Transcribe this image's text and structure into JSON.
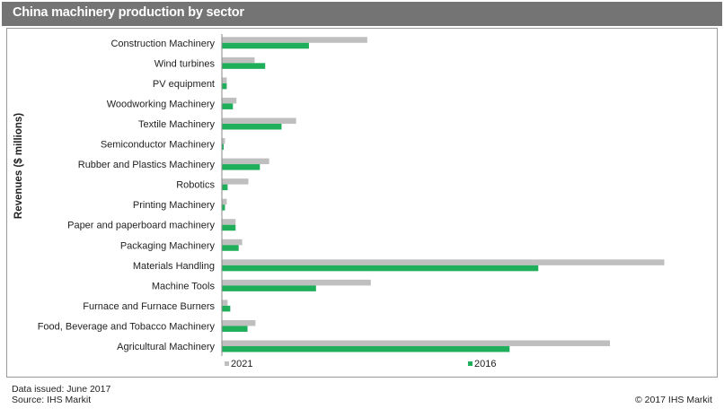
{
  "title": "China machinery production by sector",
  "footer": {
    "issued": "Data issued: June 2017",
    "source": "Source: IHS Markit",
    "copyright": "© 2017 IHS Markit"
  },
  "colors": {
    "series_2021": "#bfbfbf",
    "series_2016": "#1fae5a",
    "title_bg": "#747474"
  },
  "chart_data": {
    "type": "bar",
    "orientation": "horizontal",
    "ylabel": "Revenues ($ millions)",
    "xlabel": "",
    "grid": false,
    "legend_position": "bottom",
    "categories": [
      "Construction Machinery",
      "Wind turbines",
      "PV equipment",
      "Woodworking Machinery",
      "Textile Machinery",
      "Semiconductor Machinery",
      "Rubber and Plastics Machinery",
      "Robotics",
      "Printing Machinery",
      "Paper and paperboard machinery",
      "Packaging Machinery",
      "Materials Handling",
      "Machine Tools",
      "Furnace and Furnace Burners",
      "Food, Beverage and Tobacco Machinery",
      "Agricultural Machinery"
    ],
    "series": [
      {
        "name": "2021",
        "values": [
          32.8,
          7.3,
          1.0,
          3.2,
          16.7,
          0.6,
          10.6,
          5.9,
          1.0,
          3.0,
          4.5,
          100.0,
          33.6,
          1.2,
          7.5,
          87.7
        ]
      },
      {
        "name": "2016",
        "values": [
          19.6,
          9.7,
          1.0,
          2.4,
          13.4,
          0.3,
          8.5,
          1.2,
          0.6,
          3.0,
          3.7,
          71.5,
          21.2,
          1.8,
          5.7,
          65.0
        ]
      }
    ]
  }
}
